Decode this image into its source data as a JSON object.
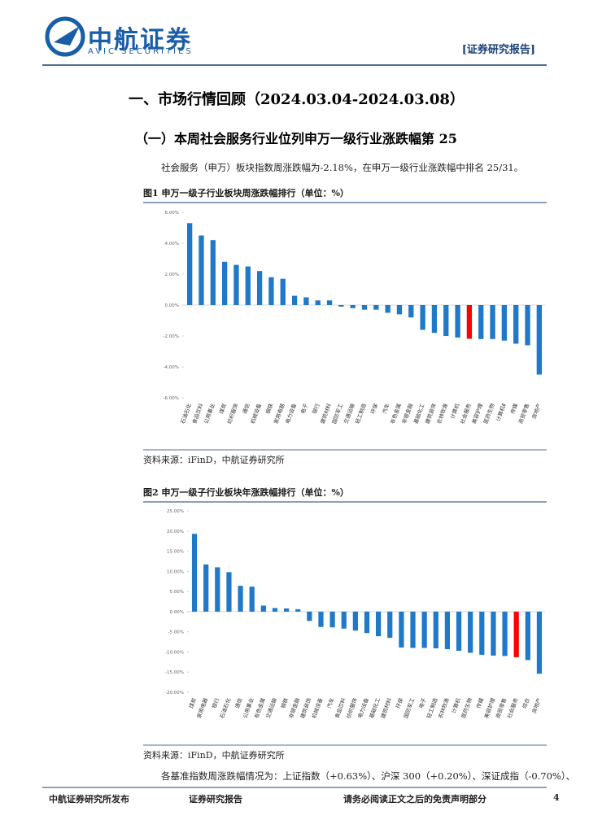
{
  "header": {
    "logo": "中航证券",
    "logo_en": "AVIC SECURITIES",
    "tag": "[证券研究报告]"
  },
  "heading": "一、市场行情回顾（2024.03.04-2024.03.08）",
  "subheading": "（一）本周社会服务行业位列申万一级行业涨跌幅第 25",
  "paragraphs": [
    "社会服务（申万）板块指数周涨跌幅为-2.18%，在申万一级行业涨跌幅中排名 25/31。",
    "各基准指数周涨跌幅情况为：上证指数（+0.63%）、沪深 300（+0.20%）、深证成指（-0.70%）、"
  ],
  "chart_data": [
    {
      "type": "bar",
      "title": "图1 申万一级子行业板块周涨跌幅排行（单位：%）",
      "source": "资料来源：iFinD，中航证券研究所",
      "categories": [
        "石油石化",
        "食品饮料",
        "公用事业",
        "煤炭",
        "纺织服饰",
        "通信",
        "机械设备",
        "钢铁",
        "家用电器",
        "电力设备",
        "电子",
        "银行",
        "建筑材料",
        "国防军工",
        "交通运输",
        "轻工制造",
        "环保",
        "汽车",
        "有色金属",
        "非银金融",
        "基础化工",
        "建筑装饰",
        "农林牧渔",
        "计算机",
        "社会服务",
        "美容护理",
        "医药生物",
        "计算机Ⅱ",
        "传媒",
        "商贸零售",
        "房地产"
      ],
      "values": [
        5.3,
        4.5,
        4.2,
        2.8,
        2.6,
        2.5,
        2.2,
        1.8,
        1.7,
        0.6,
        0.5,
        0.3,
        0.3,
        -0.1,
        -0.2,
        -0.3,
        -0.3,
        -0.5,
        -0.6,
        -0.8,
        -1.6,
        -1.8,
        -2.0,
        -2.1,
        -2.18,
        -2.2,
        -2.2,
        -2.3,
        -2.5,
        -2.6,
        -4.5
      ],
      "colors": [
        "#1f78c8",
        "#1f78c8",
        "#1f78c8",
        "#1f78c8",
        "#1f78c8",
        "#1f78c8",
        "#1f78c8",
        "#1f78c8",
        "#1f78c8",
        "#1f78c8",
        "#1f78c8",
        "#1f78c8",
        "#1f78c8",
        "#1f78c8",
        "#1f78c8",
        "#1f78c8",
        "#1f78c8",
        "#1f78c8",
        "#1f78c8",
        "#1f78c8",
        "#1f78c8",
        "#1f78c8",
        "#1f78c8",
        "#1f78c8",
        "#ff0000",
        "#1f78c8",
        "#1f78c8",
        "#1f78c8",
        "#1f78c8",
        "#1f78c8",
        "#1f78c8"
      ],
      "ylim": [
        -6,
        6
      ],
      "yticks": [
        {
          "value": -6,
          "label": "-6.00%"
        },
        {
          "value": -4,
          "label": "-4.00%"
        },
        {
          "value": -2,
          "label": "-2.00%"
        },
        {
          "value": 0,
          "label": "0.00%"
        },
        {
          "value": 2,
          "label": "2.00%"
        },
        {
          "value": 4,
          "label": "4.00%"
        },
        {
          "value": 6,
          "label": "6.00%"
        }
      ]
    },
    {
      "type": "bar",
      "title": "图2 申万一级子行业板块年涨跌幅排行（单位：%）",
      "source": "资料来源：iFinD，中航证券研究所",
      "categories": [
        "煤炭",
        "家用电器",
        "银行",
        "石油石化",
        "通信",
        "公用事业",
        "有色金属",
        "交通运输",
        "钢铁",
        "非银金融",
        "建筑装饰",
        "机械设备",
        "汽车",
        "食品饮料",
        "纺织服饰",
        "电力设备",
        "基础化工",
        "建筑材料",
        "环保",
        "国防军工",
        "电子",
        "轻工制造",
        "农林牧渔",
        "计算机",
        "医药生物",
        "传媒",
        "美容护理",
        "商贸零售",
        "社会服务",
        "综合",
        "房地产"
      ],
      "values": [
        19.3,
        11.7,
        11.0,
        9.8,
        6.4,
        6.2,
        1.5,
        0.9,
        0.8,
        0.6,
        -2.3,
        -3.8,
        -3.9,
        -4.2,
        -4.7,
        -5.3,
        -6.1,
        -6.5,
        -8.9,
        -9.0,
        -9.0,
        -9.1,
        -9.3,
        -9.7,
        -10.2,
        -10.7,
        -10.9,
        -11.0,
        -11.3,
        -12.0,
        -15.4
      ],
      "colors": [
        "#1f78c8",
        "#1f78c8",
        "#1f78c8",
        "#1f78c8",
        "#1f78c8",
        "#1f78c8",
        "#1f78c8",
        "#1f78c8",
        "#1f78c8",
        "#1f78c8",
        "#1f78c8",
        "#1f78c8",
        "#1f78c8",
        "#1f78c8",
        "#1f78c8",
        "#1f78c8",
        "#1f78c8",
        "#1f78c8",
        "#1f78c8",
        "#1f78c8",
        "#1f78c8",
        "#1f78c8",
        "#1f78c8",
        "#1f78c8",
        "#1f78c8",
        "#1f78c8",
        "#1f78c8",
        "#1f78c8",
        "#ff0000",
        "#1f78c8",
        "#1f78c8"
      ],
      "ylim": [
        -20,
        25
      ],
      "yticks": [
        {
          "value": -20,
          "label": "-20.00%"
        },
        {
          "value": -15,
          "label": "-15.00%"
        },
        {
          "value": -10,
          "label": "-10.00%"
        },
        {
          "value": -5,
          "label": "-5.00%"
        },
        {
          "value": 0,
          "label": "0.00%"
        },
        {
          "value": 5,
          "label": "5.00%"
        },
        {
          "value": 10,
          "label": "10.00%"
        },
        {
          "value": 15,
          "label": "15.00%"
        },
        {
          "value": 20,
          "label": "20.00%"
        },
        {
          "value": 25,
          "label": "25.00%"
        }
      ]
    }
  ],
  "footer": {
    "left": "中航证券研究所发布",
    "center": "证券研究报告",
    "right": "请务必阅读正文之后的免责声明部分",
    "page": "4"
  }
}
